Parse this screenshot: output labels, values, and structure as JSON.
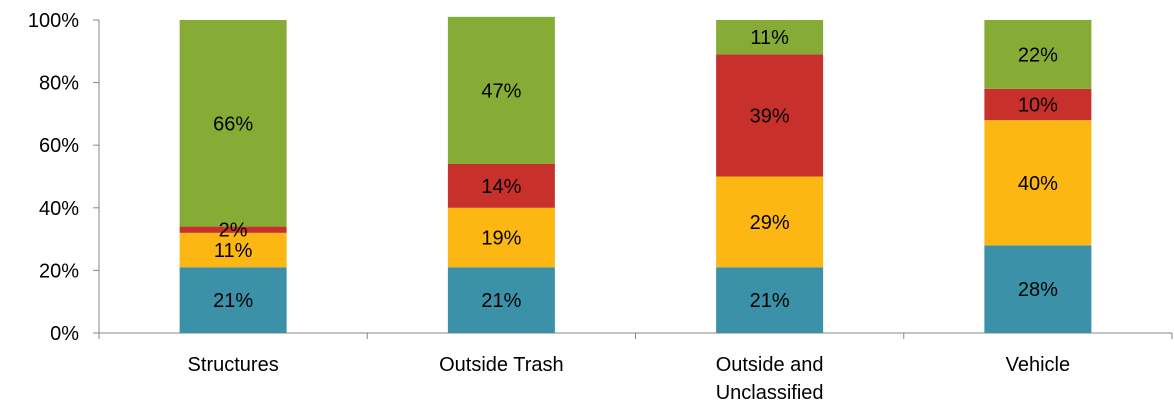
{
  "chart_data": {
    "type": "bar",
    "stacked": true,
    "normalized": true,
    "categories": [
      [
        "Structures"
      ],
      [
        "Outside Trash"
      ],
      [
        "Outside and",
        "Unclassified"
      ],
      [
        "Vehicle"
      ]
    ],
    "y_ticks": [
      "0%",
      "20%",
      "40%",
      "60%",
      "80%",
      "100%"
    ],
    "ylim": [
      0,
      100
    ],
    "grid": false,
    "legend": "none",
    "title": "",
    "xlabel": "",
    "ylabel": "",
    "series": [
      {
        "color": "#3A91A8",
        "values": [
          21,
          21,
          21,
          28
        ],
        "labels": [
          "21%",
          "21%",
          "21%",
          "28%"
        ]
      },
      {
        "color": "#FDB713",
        "values": [
          11,
          19,
          29,
          40
        ],
        "labels": [
          "11%",
          "19%",
          "29%",
          "40%"
        ]
      },
      {
        "color": "#C8302C",
        "values": [
          2,
          14,
          39,
          10
        ],
        "labels": [
          "2%",
          "14%",
          "39%",
          "10%"
        ]
      },
      {
        "color": "#86AC35",
        "values": [
          66,
          47,
          11,
          22
        ],
        "labels": [
          "66%",
          "47%",
          "11%",
          "22%"
        ]
      }
    ]
  }
}
